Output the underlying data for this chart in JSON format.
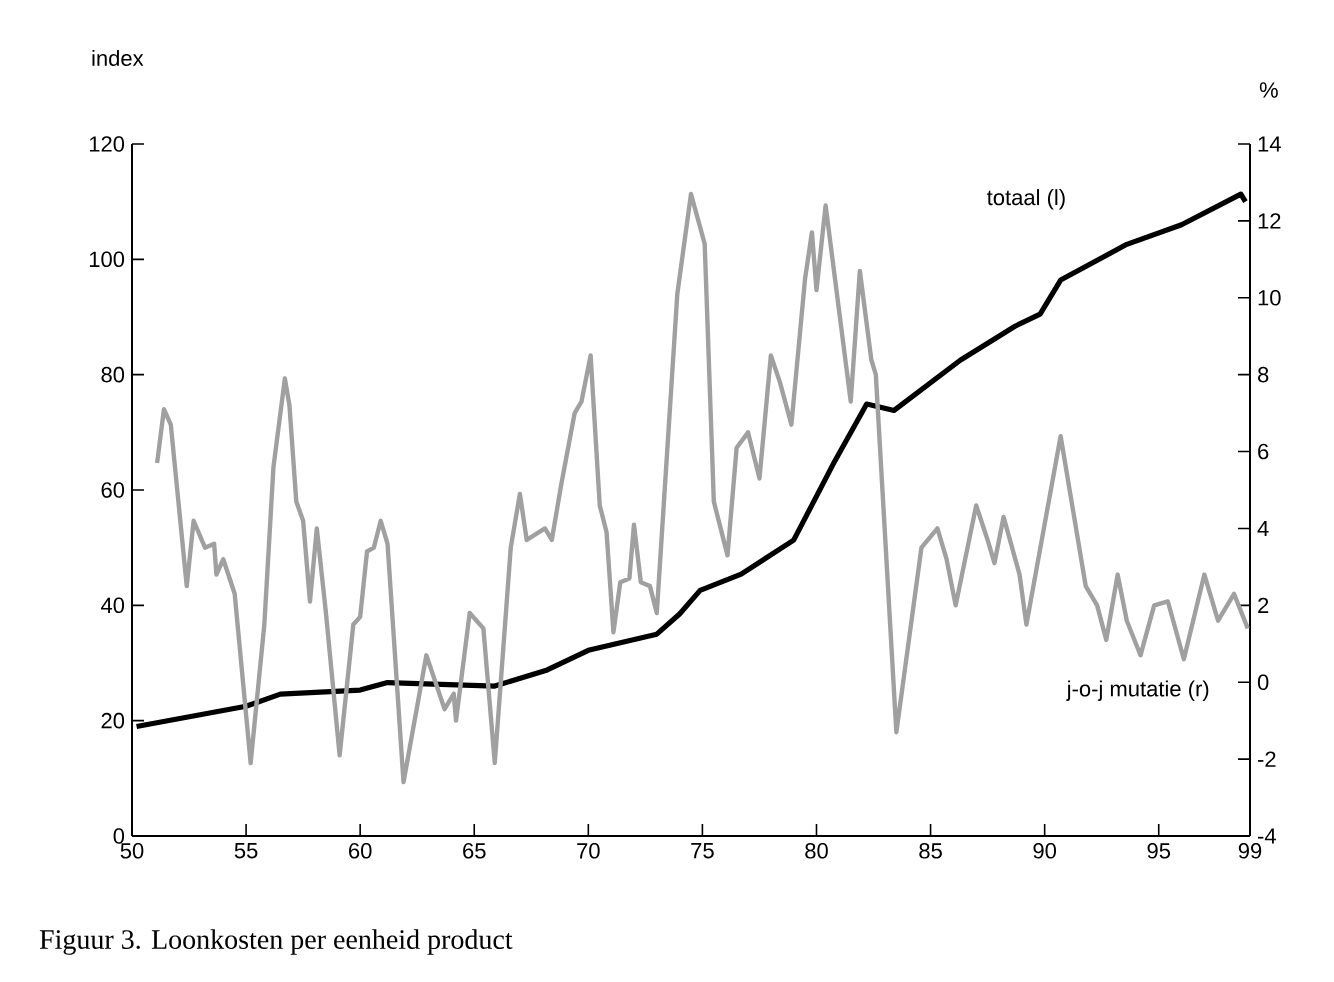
{
  "chart_data": {
    "type": "line",
    "title": "Figuur 3. Loonkosten per eenheid product",
    "ylabel": "index",
    "y2label": "%",
    "xlim": [
      50,
      99
    ],
    "xticks": [
      50,
      55,
      60,
      65,
      70,
      75,
      80,
      85,
      90,
      95,
      99
    ],
    "ylim": [
      0,
      120
    ],
    "yticks": [
      0,
      20,
      40,
      60,
      80,
      100,
      120
    ],
    "y2lim": [
      -4,
      14
    ],
    "y2ticks": [
      -4,
      -2,
      0,
      2,
      4,
      6,
      8,
      10,
      12,
      14
    ],
    "series": [
      {
        "name": "totaal (l)",
        "color": "#000000",
        "x": [
          50.2,
          55,
          56.5,
          60,
          61.2,
          65.9,
          68.2,
          70,
          73,
          74,
          74.9,
          76.7,
          79,
          80.8,
          82.2,
          83.4,
          86.3,
          88.7,
          89.8,
          90.7,
          93.6,
          96,
          98.6,
          98.8
        ],
        "values": [
          19,
          22.5,
          24.6,
          25.3,
          26.6,
          26,
          28.8,
          32.2,
          35,
          38.5,
          42.6,
          45.4,
          51.3,
          65,
          74.9,
          73.8,
          82.5,
          88.4,
          90.5,
          96.4,
          102.6,
          106,
          111.3,
          110
        ]
      },
      {
        "name": "j-o-j mutatie (r)",
        "color": "#a0a0a0",
        "axis": "y2",
        "x": [
          51.1,
          51.4,
          51.7,
          52.4,
          52.7,
          53.2,
          53.6,
          53.7,
          54.0,
          54.5,
          55.2,
          55.8,
          56.2,
          56.7,
          56.9,
          57.2,
          57.5,
          57.8,
          58.1,
          58.5,
          59.1,
          59.7,
          60.0,
          60.3,
          60.6,
          60.9,
          61.2,
          61.9,
          62.9,
          63.7,
          64.1,
          64.2,
          64.8,
          65.4,
          65.9,
          66.6,
          67.0,
          67.3,
          68.1,
          68.4,
          68.8,
          69.4,
          69.7,
          70.1,
          70.5,
          70.8,
          71.1,
          71.4,
          71.8,
          72.0,
          72.3,
          72.7,
          73.0,
          73.9,
          74.5,
          75.1,
          75.5,
          76.1,
          76.5,
          77.0,
          77.5,
          78.0,
          78.4,
          78.9,
          79.5,
          79.8,
          80.0,
          80.4,
          81.5,
          81.9,
          82.4,
          82.6,
          83.5,
          84.6,
          85.3,
          85.7,
          86.1,
          87.0,
          87.5,
          87.8,
          88.2,
          88.9,
          89.2,
          90.7,
          91.8,
          92.3,
          92.7,
          93.2,
          93.6,
          94.2,
          94.8,
          95.4,
          96.1,
          97.0,
          97.6,
          98.3,
          98.9
        ],
        "values": [
          5.7,
          7.1,
          6.7,
          2.5,
          4.2,
          3.5,
          3.6,
          2.8,
          3.2,
          2.3,
          -2.1,
          1.5,
          5.6,
          7.9,
          7.2,
          4.7,
          4.2,
          2.1,
          4.0,
          1.8,
          -1.9,
          1.5,
          1.7,
          3.4,
          3.5,
          4.2,
          3.6,
          -2.6,
          0.7,
          -0.7,
          -0.3,
          -1.0,
          1.8,
          1.4,
          -2.1,
          3.5,
          4.9,
          3.7,
          4.0,
          3.7,
          5.1,
          7.0,
          7.3,
          8.5,
          4.6,
          3.9,
          1.3,
          2.6,
          2.7,
          4.1,
          2.6,
          2.5,
          1.8,
          10.1,
          12.7,
          11.4,
          4.7,
          3.3,
          6.1,
          6.5,
          5.3,
          8.5,
          7.8,
          6.7,
          10.5,
          11.7,
          10.2,
          12.4,
          7.3,
          10.7,
          8.4,
          8.0,
          -1.3,
          3.5,
          4.0,
          3.2,
          2.0,
          4.6,
          3.7,
          3.1,
          4.3,
          2.8,
          1.5,
          6.4,
          2.5,
          2.0,
          1.1,
          2.8,
          1.6,
          0.7,
          2.0,
          2.1,
          0.6,
          2.8,
          1.6,
          2.3,
          1.4
        ]
      }
    ]
  }
}
